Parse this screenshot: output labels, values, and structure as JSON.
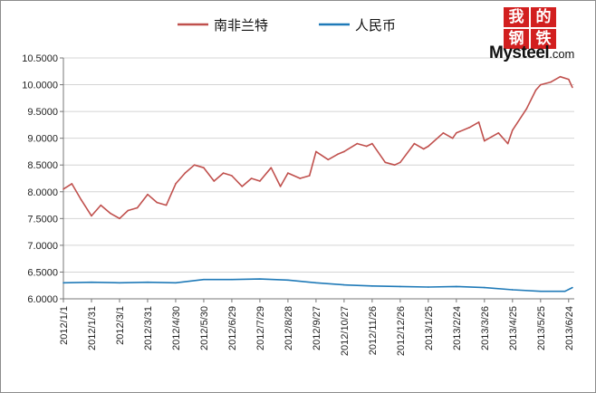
{
  "logo": {
    "chars": [
      "我",
      "的",
      "钢",
      "铁"
    ],
    "word": "Mysteel",
    "suffix": ".com",
    "colors": {
      "box": "#d21f1f",
      "text": "#111111"
    }
  },
  "chart_data": {
    "type": "line",
    "title": "",
    "xlabel": "",
    "ylabel": "",
    "ylim": [
      6.0,
      10.5
    ],
    "yticks": [
      "10.5000",
      "10.0000",
      "9.5000",
      "9.0000",
      "8.5000",
      "8.0000",
      "7.5000",
      "7.0000",
      "6.5000",
      "6.0000"
    ],
    "xticks": [
      "2012/1/1",
      "2012/1/31",
      "2012/3/1",
      "2012/3/31",
      "2012/4/30",
      "2012/5/30",
      "2012/6/29",
      "2012/7/29",
      "2012/8/28",
      "2012/9/27",
      "2012/10/27",
      "2012/11/26",
      "2012/12/26",
      "2013/1/25",
      "2013/2/24",
      "2013/3/26",
      "2013/4/25",
      "2013/5/25",
      "2013/6/24"
    ],
    "grid": true,
    "legend_position": "top",
    "series": [
      {
        "name": "南非兰特",
        "color": "#c0504d",
        "x": [
          "2012/1/1",
          "2012/1/10",
          "2012/1/20",
          "2012/1/31",
          "2012/2/10",
          "2012/2/20",
          "2012/3/1",
          "2012/3/10",
          "2012/3/20",
          "2012/3/31",
          "2012/4/10",
          "2012/4/20",
          "2012/4/30",
          "2012/5/10",
          "2012/5/20",
          "2012/5/30",
          "2012/6/10",
          "2012/6/20",
          "2012/6/29",
          "2012/7/10",
          "2012/7/20",
          "2012/7/29",
          "2012/8/10",
          "2012/8/20",
          "2012/8/28",
          "2012/9/10",
          "2012/9/20",
          "2012/9/27",
          "2012/10/10",
          "2012/10/20",
          "2012/10/27",
          "2012/11/10",
          "2012/11/20",
          "2012/11/26",
          "2012/12/10",
          "2012/12/20",
          "2012/12/26",
          "2013/1/10",
          "2013/1/20",
          "2013/1/25",
          "2013/2/10",
          "2013/2/20",
          "2013/2/24",
          "2013/3/10",
          "2013/3/20",
          "2013/3/26",
          "2013/4/10",
          "2013/4/20",
          "2013/4/25",
          "2013/5/10",
          "2013/5/20",
          "2013/5/25",
          "2013/6/5",
          "2013/6/15",
          "2013/6/24",
          "2013/6/28"
        ],
        "values": [
          8.05,
          8.15,
          7.85,
          7.55,
          7.75,
          7.6,
          7.5,
          7.65,
          7.7,
          7.95,
          7.8,
          7.75,
          8.15,
          8.35,
          8.5,
          8.45,
          8.2,
          8.35,
          8.3,
          8.1,
          8.25,
          8.2,
          8.45,
          8.1,
          8.35,
          8.25,
          8.3,
          8.75,
          8.6,
          8.7,
          8.75,
          8.9,
          8.85,
          8.9,
          8.55,
          8.5,
          8.55,
          8.9,
          8.8,
          8.85,
          9.1,
          9.0,
          9.1,
          9.2,
          9.3,
          8.95,
          9.1,
          8.9,
          9.15,
          9.55,
          9.9,
          10.0,
          10.05,
          10.15,
          10.1,
          9.95
        ]
      },
      {
        "name": "人民币",
        "color": "#1f7ab8",
        "x": [
          "2012/1/1",
          "2012/1/31",
          "2012/3/1",
          "2012/3/31",
          "2012/4/30",
          "2012/5/30",
          "2012/6/29",
          "2012/7/29",
          "2012/8/28",
          "2012/9/27",
          "2012/10/27",
          "2012/11/26",
          "2012/12/26",
          "2013/1/25",
          "2013/2/24",
          "2013/3/26",
          "2013/4/25",
          "2013/5/25",
          "2013/6/20",
          "2013/6/28"
        ],
        "values": [
          6.3,
          6.31,
          6.3,
          6.31,
          6.3,
          6.36,
          6.36,
          6.37,
          6.35,
          6.3,
          6.26,
          6.24,
          6.23,
          6.22,
          6.23,
          6.21,
          6.17,
          6.14,
          6.14,
          6.21
        ]
      }
    ]
  }
}
